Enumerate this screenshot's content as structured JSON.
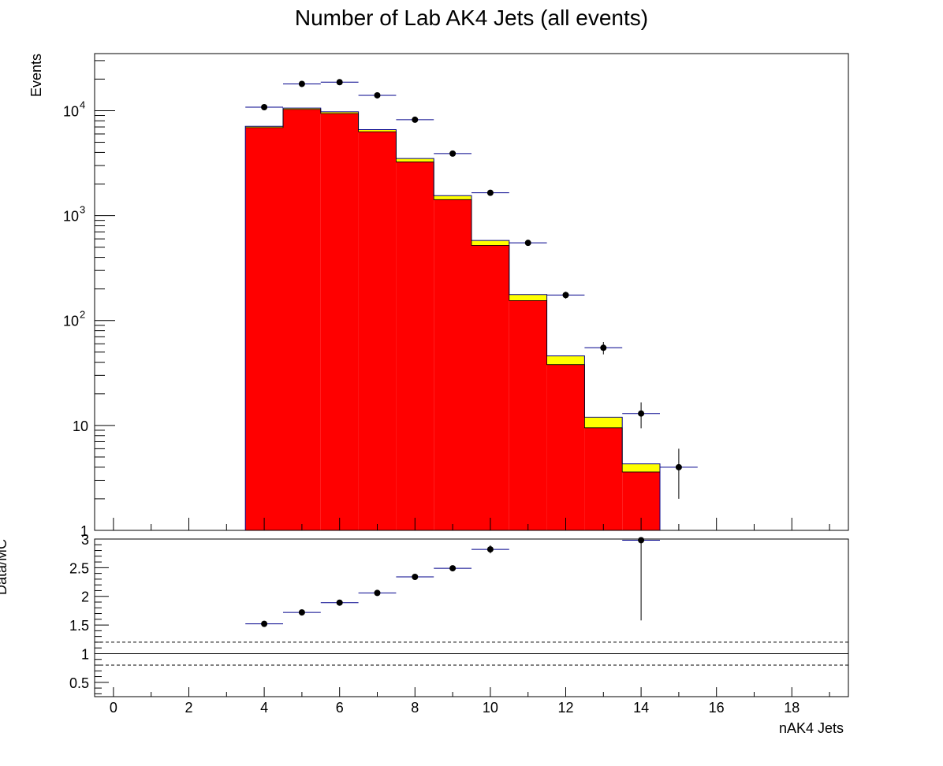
{
  "chart_data": [
    {
      "panel": "main",
      "type": "bar",
      "title": "Number of Lab AK4 Jets (all events)",
      "ylabel": "Events",
      "yscale": "log",
      "ylim": [
        1,
        35000
      ],
      "xlim": [
        -0.5,
        19.5
      ],
      "y_tick_labels": [
        {
          "value": 1,
          "base": "1",
          "exp": ""
        },
        {
          "value": 10,
          "base": "10",
          "exp": ""
        },
        {
          "value": 100,
          "base": "10",
          "exp": "2"
        },
        {
          "value": 1000,
          "base": "10",
          "exp": "3"
        },
        {
          "value": 10000,
          "base": "10",
          "exp": "4"
        }
      ],
      "bin_width": 1,
      "stack": [
        {
          "color": "#ff0000",
          "x": [
            4,
            5,
            6,
            7,
            8,
            9,
            10,
            11,
            12,
            13,
            14
          ],
          "values": [
            6900,
            10300,
            9400,
            6300,
            3250,
            1420,
            520,
            155,
            38,
            9.5,
            3.6
          ]
        },
        {
          "color": "#ffff00",
          "x": [
            4,
            5,
            6,
            7,
            8,
            9,
            10,
            11,
            12,
            13,
            14
          ],
          "values": [
            200,
            300,
            350,
            300,
            250,
            130,
            60,
            22,
            8,
            2.5,
            0.7
          ]
        }
      ],
      "data_points": {
        "x": [
          4,
          5,
          6,
          7,
          8,
          9,
          10,
          11,
          12,
          13,
          14,
          15
        ],
        "y": [
          10800,
          18000,
          18700,
          14000,
          8200,
          3900,
          1650,
          550,
          175,
          55,
          13,
          4
        ],
        "yerr": [
          104,
          134,
          137,
          118,
          91,
          62,
          41,
          23,
          13,
          7.4,
          3.6,
          2
        ]
      }
    },
    {
      "panel": "ratio",
      "type": "scatter",
      "ylabel": "Data/MC",
      "xlabel": "nAK4 Jets",
      "ylim": [
        0.25,
        3.0
      ],
      "xlim": [
        -0.5,
        19.5
      ],
      "y_ticks": [
        0.5,
        1,
        1.5,
        2,
        2.5,
        3
      ],
      "y_tick_labels": [
        "0.5",
        "1",
        "1.5",
        "2",
        "2.5",
        "3"
      ],
      "x_ticks": [
        0,
        2,
        4,
        6,
        8,
        10,
        12,
        14,
        16,
        18
      ],
      "x_tick_labels": [
        "0",
        "2",
        "4",
        "6",
        "8",
        "10",
        "12",
        "14",
        "16",
        "18"
      ],
      "reference_lines": {
        "solid": 1.0,
        "dashed": [
          0.8,
          1.2
        ]
      },
      "points": {
        "x": [
          4,
          5,
          6,
          7,
          8,
          9,
          10,
          14
        ],
        "y": [
          1.52,
          1.72,
          1.89,
          2.06,
          2.34,
          2.49,
          2.82,
          2.98
        ],
        "yerr": [
          0.02,
          0.02,
          0.02,
          0.02,
          0.03,
          0.03,
          0.07,
          1.4
        ]
      }
    }
  ]
}
